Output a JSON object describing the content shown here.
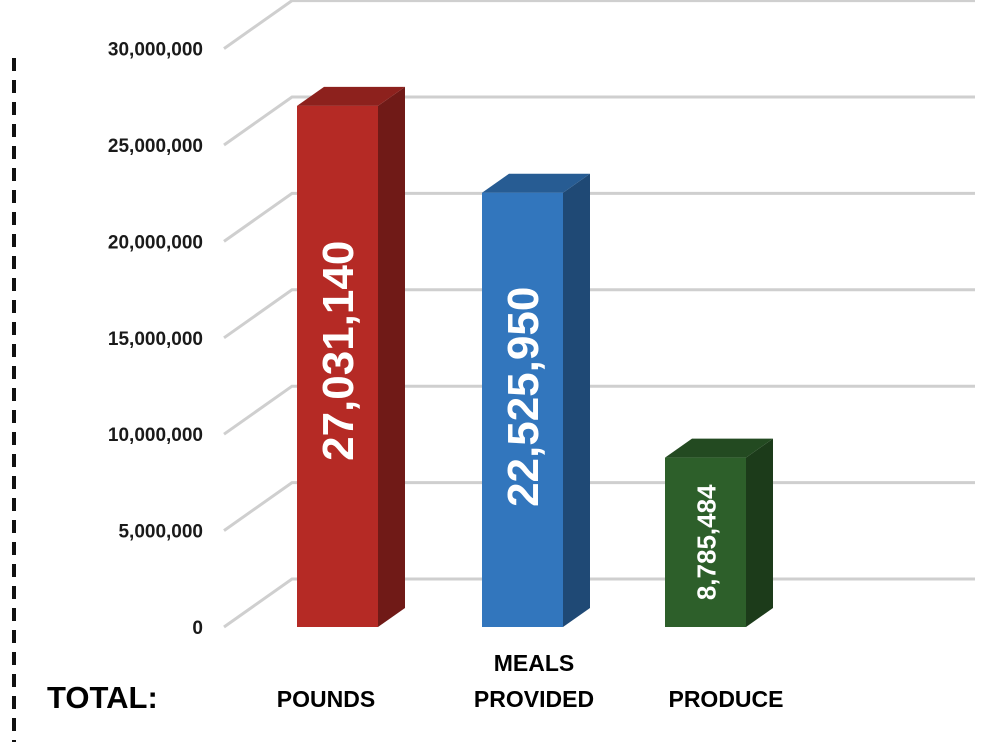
{
  "chart_data": {
    "type": "bar",
    "row_label": "TOTAL:",
    "categories": [
      "POUNDS",
      "MEALS PROVIDED",
      "PRODUCE"
    ],
    "values": [
      27031140,
      22525950,
      8785484
    ],
    "data_labels": [
      "27,031,140",
      "22,525,950",
      "8,785,484"
    ],
    "y_ticks": [
      "0",
      "5,000,000",
      "10,000,000",
      "15,000,000",
      "20,000,000",
      "25,000,000",
      "30,000,000"
    ],
    "ylim": [
      0,
      30000000
    ],
    "grid": true,
    "three_d": true,
    "colors": [
      "#b52a25",
      "#3276bd",
      "#2d5f2a"
    ]
  }
}
